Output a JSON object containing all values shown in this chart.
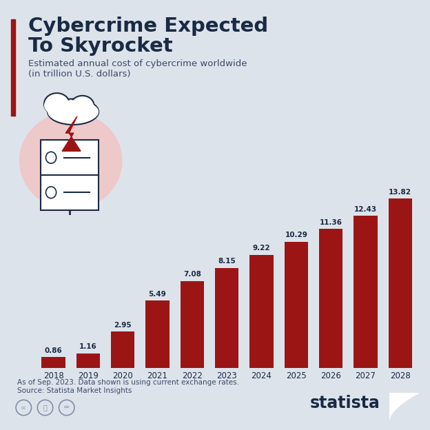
{
  "title_line1": "Cybercrime Expected",
  "title_line2": "To Skyrocket",
  "subtitle_line1": "Estimated annual cost of cybercrime worldwide",
  "subtitle_line2": "(in trillion U.S. dollars)",
  "years": [
    "2018",
    "2019",
    "2020",
    "2021",
    "2022",
    "2023",
    "2024",
    "2025",
    "2026",
    "2027",
    "2028"
  ],
  "values": [
    0.86,
    1.16,
    2.95,
    5.49,
    7.08,
    8.15,
    9.22,
    10.29,
    11.36,
    12.43,
    13.82
  ],
  "bar_color": "#9B1515",
  "background_color": "#dde3ea",
  "title_color": "#1a2a44",
  "subtitle_color": "#3a4a6a",
  "label_color": "#1a2a44",
  "footer_line1": "As of Sep. 2023. Data shown is using current exchange rates.",
  "footer_line2": "Source: Statista Market Insights",
  "ylim": [
    0,
    16
  ],
  "accent_red": "#9B1515",
  "pink_blob": "#f2c5c5",
  "statista_dark": "#1a2a44"
}
